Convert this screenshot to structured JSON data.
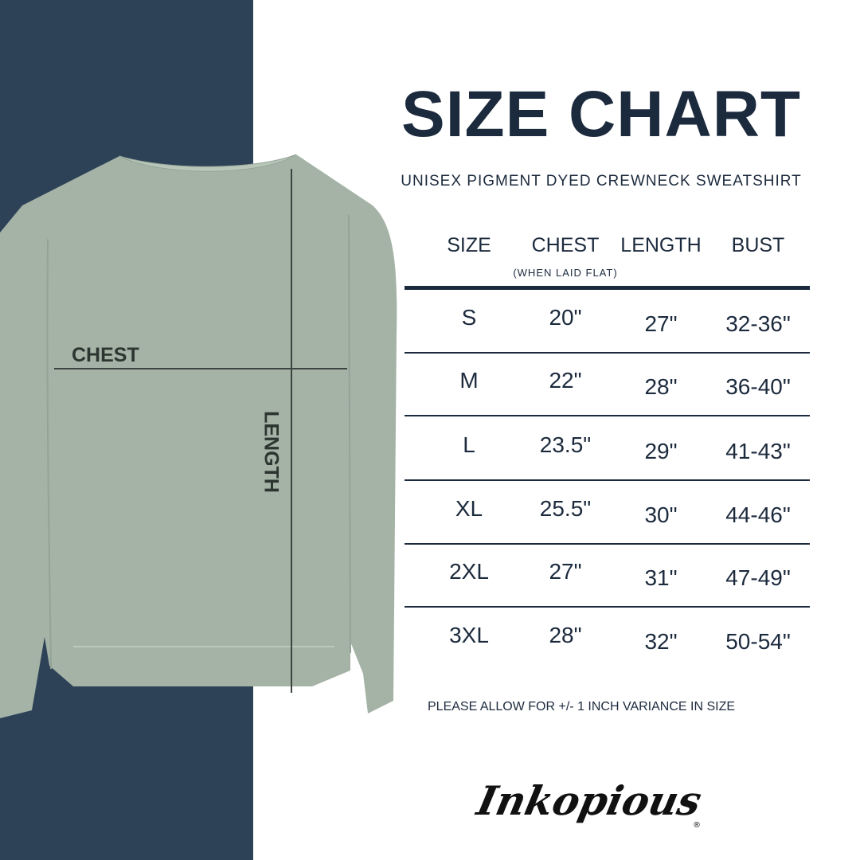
{
  "title": "SIZE CHART",
  "subtitle": "UNISEX PIGMENT DYED CREWNECK SWEATSHIRT",
  "diagram": {
    "chest_label": "CHEST",
    "length_label": "LENGTH"
  },
  "table": {
    "headers": [
      "SIZE",
      "CHEST",
      "LENGTH",
      "BUST"
    ],
    "chest_note": "(WHEN LAID FLAT)",
    "rows": [
      [
        "S",
        "20\"",
        "27\"",
        "32-36\""
      ],
      [
        "M",
        "22\"",
        "28\"",
        "36-40\""
      ],
      [
        "L",
        "23.5\"",
        "29\"",
        "41-43\""
      ],
      [
        "XL",
        "25.5\"",
        "30\"",
        "44-46\""
      ],
      [
        "2XL",
        "27\"",
        "31\"",
        "47-49\""
      ],
      [
        "3XL",
        "28\"",
        "32\"",
        "50-54\""
      ]
    ]
  },
  "note": "PLEASE ALLOW FOR +/- 1 INCH VARIANCE IN SIZE",
  "brand": "Inkopious",
  "colors": {
    "navy": "#2e4257",
    "sage": "#a4b3a6",
    "text": "#1c2a3d"
  }
}
